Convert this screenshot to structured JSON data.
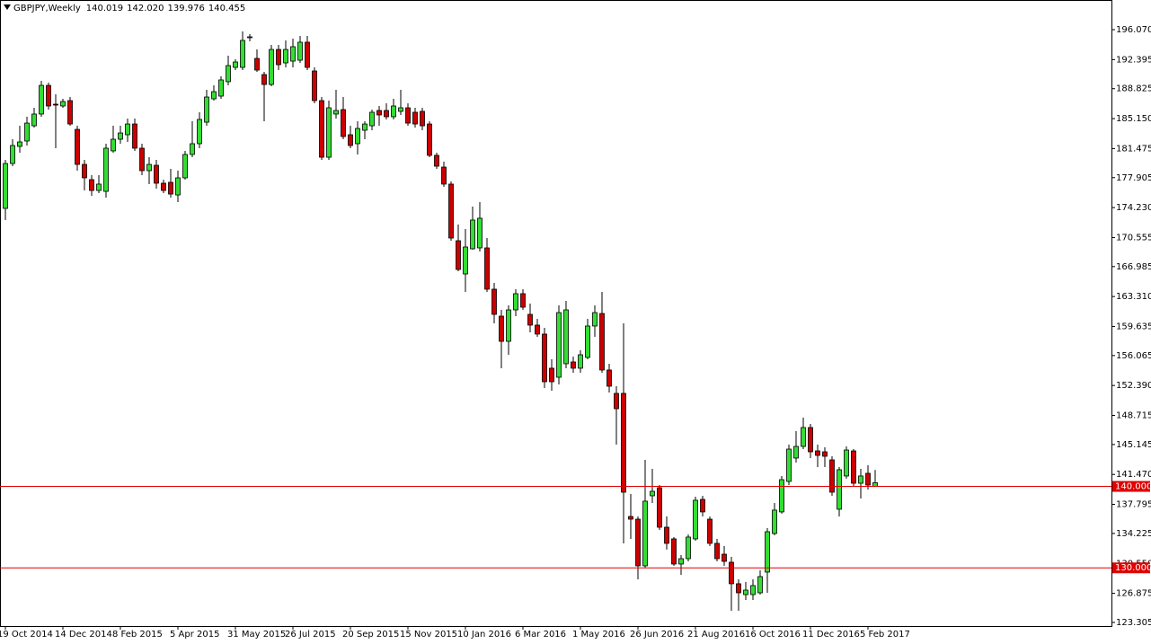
{
  "chart_data": {
    "type": "candlestick",
    "title": "GBPJPY,Weekly",
    "title_values": [
      "140.019",
      "142.020",
      "139.976",
      "140.455"
    ],
    "categories": [
      "19 Oct 2014",
      null,
      null,
      null,
      null,
      null,
      null,
      null,
      "14 Dec 2014",
      null,
      null,
      null,
      null,
      null,
      null,
      null,
      "8 Feb 2015",
      null,
      null,
      null,
      null,
      null,
      null,
      null,
      "5 Apr 2015",
      null,
      null,
      null,
      null,
      null,
      null,
      null,
      "31 May 2015",
      null,
      null,
      null,
      null,
      null,
      null,
      null,
      "26 Jul 2015",
      null,
      null,
      null,
      null,
      null,
      null,
      null,
      "20 Sep 2015",
      null,
      null,
      null,
      null,
      null,
      null,
      null,
      "15 Nov 2015",
      null,
      null,
      null,
      null,
      null,
      null,
      null,
      "10 Jan 2016",
      null,
      null,
      null,
      null,
      null,
      null,
      null,
      "6 Mar 2016",
      null,
      null,
      null,
      null,
      null,
      null,
      null,
      "1 May 2016",
      null,
      null,
      null,
      null,
      null,
      null,
      null,
      "26 Jun 2016",
      null,
      null,
      null,
      null,
      null,
      null,
      null,
      "21 Aug 2016",
      null,
      null,
      null,
      null,
      null,
      null,
      null,
      "16 Oct 2016",
      null,
      null,
      null,
      null,
      null,
      null,
      null,
      "11 Dec 2016",
      null,
      null,
      null,
      null,
      null,
      null,
      null,
      "5 Feb 2017",
      null
    ],
    "open": [
      174.13,
      179.64,
      181.74,
      182.4,
      184.27,
      185.71,
      189.23,
      186.92,
      186.7,
      187.36,
      183.83,
      179.53,
      177.66,
      176.33,
      176.22,
      181.19,
      182.62,
      183.17,
      184.49,
      181.52,
      178.76,
      179.42,
      177.22,
      177.33,
      175.78,
      177.88,
      180.75,
      182.07,
      184.71,
      187.58,
      187.91,
      189.68,
      191.44,
      191.44,
      195.08,
      192.54,
      190.56,
      189.34,
      193.64,
      191.99,
      192.21,
      192.32,
      194.53,
      191.0,
      187.36,
      180.41,
      185.71,
      186.26,
      183.17,
      182.07,
      183.72,
      184.27,
      186.15,
      186.15,
      185.38,
      186.04,
      186.48,
      185.93,
      186.04,
      184.49,
      180.64,
      179.2,
      177.11,
      170.16,
      166.08,
      169.17,
      169.28,
      169.28,
      164.21,
      160.9,
      157.81,
      161.67,
      163.66,
      161.12,
      159.8,
      158.7,
      154.51,
      153.4,
      155.06,
      155.28,
      154.51,
      155.83,
      159.69,
      161.23,
      154.29,
      151.42,
      151.42,
      136.31,
      135.98,
      130.25,
      138.85,
      139.84,
      134.99,
      133.56,
      130.47,
      131.13,
      133.56,
      138.41,
      135.98,
      133.01,
      131.68,
      130.69,
      128.05,
      126.72,
      126.72,
      126.94,
      129.48,
      134.22,
      136.87,
      140.61,
      143.48,
      144.91,
      147.23,
      144.36,
      144.25,
      143.26,
      137.2,
      141.28,
      144.36,
      140.39,
      141.61,
      140.019
    ],
    "high": [
      180.08,
      182.62,
      184.27,
      185.38,
      186.48,
      189.79,
      189.57,
      188.13,
      187.58,
      187.8,
      184.27,
      180.08,
      178.21,
      178.21,
      182.07,
      184.27,
      184.27,
      185.16,
      185.16,
      182.07,
      180.41,
      180.08,
      177.66,
      178.98,
      178.76,
      181.19,
      184.82,
      185.93,
      188.68,
      189.23,
      190.34,
      192.87,
      192.43,
      195.85,
      195.52,
      193.64,
      190.89,
      194.2,
      194.2,
      194.75,
      194.97,
      195.3,
      195.3,
      191.44,
      187.8,
      187.36,
      188.68,
      187.8,
      184.27,
      184.82,
      184.82,
      186.26,
      186.7,
      187.03,
      187.58,
      188.68,
      187.03,
      186.48,
      186.48,
      184.82,
      180.97,
      179.86,
      177.44,
      172.15,
      171.59,
      174.35,
      174.9,
      170.49,
      164.98,
      161.67,
      162.22,
      164.21,
      164.21,
      162.44,
      160.57,
      159.47,
      155.61,
      162.22,
      162.77,
      155.94,
      156.71,
      160.57,
      162.22,
      163.88,
      155.06,
      152.3,
      160.02,
      139.07,
      136.31,
      143.26,
      142.16,
      140.17,
      136.31,
      133.78,
      131.57,
      134.11,
      138.74,
      138.85,
      136.31,
      133.56,
      132.68,
      131.35,
      128.6,
      128.27,
      128.6,
      129.7,
      134.88,
      137.97,
      141.28,
      145.13,
      146.79,
      148.44,
      147.67,
      145.13,
      144.8,
      143.7,
      142.38,
      144.91,
      144.58,
      142.16,
      142.6,
      142.02
    ],
    "low": [
      172.7,
      179.31,
      180.97,
      181.85,
      184.05,
      185.38,
      186.26,
      181.52,
      186.48,
      184.27,
      178.76,
      176.33,
      175.67,
      176.0,
      175.45,
      180.97,
      182.07,
      182.29,
      181.19,
      178.21,
      177.11,
      176.56,
      176.0,
      175.45,
      174.9,
      177.66,
      180.41,
      181.52,
      184.27,
      187.36,
      187.58,
      189.23,
      191.11,
      191.11,
      194.64,
      190.89,
      184.82,
      189.12,
      191.11,
      191.44,
      191.44,
      191.99,
      191.11,
      187.03,
      180.08,
      180.08,
      185.16,
      182.62,
      181.52,
      180.75,
      182.62,
      183.72,
      184.27,
      185.05,
      185.05,
      185.6,
      184.27,
      184.05,
      183.72,
      180.41,
      178.98,
      176.78,
      170.16,
      166.41,
      163.88,
      169.06,
      168.84,
      163.88,
      160.02,
      154.51,
      156.16,
      160.9,
      161.67,
      158.92,
      158.36,
      152.08,
      151.75,
      152.52,
      154.51,
      153.95,
      153.95,
      155.61,
      158.36,
      153.95,
      151.53,
      145.13,
      133.01,
      133.56,
      128.6,
      130.03,
      137.97,
      134.66,
      132.24,
      130.25,
      129.15,
      130.8,
      133.34,
      136.31,
      132.68,
      130.8,
      130.25,
      124.74,
      124.74,
      126.06,
      126.06,
      126.72,
      126.94,
      134.0,
      136.65,
      140.17,
      142.93,
      144.58,
      143.48,
      142.38,
      142.38,
      138.85,
      136.31,
      140.95,
      139.95,
      138.52,
      139.62,
      139.976
    ],
    "close": [
      179.64,
      181.85,
      182.29,
      184.6,
      185.71,
      189.23,
      186.7,
      186.81,
      187.25,
      184.49,
      179.53,
      177.88,
      176.33,
      177.11,
      181.52,
      182.62,
      183.39,
      184.49,
      181.52,
      178.76,
      179.53,
      177.22,
      176.33,
      175.89,
      177.88,
      180.75,
      182.07,
      185.05,
      187.8,
      188.46,
      189.9,
      191.66,
      192.1,
      194.75,
      195.19,
      191.11,
      189.34,
      193.64,
      191.77,
      193.64,
      193.98,
      194.53,
      191.44,
      187.36,
      180.41,
      186.48,
      186.15,
      182.95,
      181.85,
      183.94,
      184.49,
      185.93,
      185.6,
      185.38,
      186.7,
      186.48,
      184.6,
      184.49,
      184.27,
      180.64,
      179.31,
      177.11,
      170.49,
      166.63,
      169.39,
      172.7,
      172.92,
      164.21,
      161.12,
      157.81,
      161.67,
      163.66,
      162.0,
      159.8,
      158.7,
      152.85,
      152.85,
      161.34,
      161.67,
      154.51,
      156.16,
      159.69,
      161.34,
      154.29,
      152.3,
      149.54,
      139.29,
      135.98,
      130.25,
      138.19,
      139.4,
      134.99,
      133.01,
      130.47,
      131.13,
      133.78,
      138.3,
      136.87,
      133.01,
      131.13,
      130.8,
      128.05,
      126.94,
      127.27,
      127.83,
      128.93,
      134.44,
      137.09,
      140.83,
      144.58,
      144.91,
      147.23,
      144.25,
      143.81,
      143.7,
      139.29,
      142.05,
      144.47,
      140.39,
      141.28,
      140.17,
      140.455
    ],
    "up_color": "#33dd33",
    "down_color": "#cc0000",
    "ylim": [
      122.86,
      199.49
    ],
    "yticks": [
      {
        "value": 196.07,
        "label": "196.070"
      },
      192.395,
      188.825,
      {
        "value": 185.15,
        "label": "185.150"
      },
      181.475,
      177.905,
      {
        "value": 174.23,
        "label": "174.230"
      },
      170.555,
      166.985,
      {
        "value": 163.31,
        "label": "163.310"
      },
      159.635,
      156.065,
      {
        "value": 152.39,
        "label": "152.390"
      },
      148.715,
      145.145,
      {
        "value": 141.47,
        "label": "141.470"
      },
      137.795,
      134.225,
      {
        "value": 130.55,
        "label": "130.550"
      },
      126.875,
      123.305
    ],
    "levels": [
      {
        "value": 140,
        "label": "140.000"
      },
      {
        "value": 130,
        "label": "130.000"
      }
    ],
    "level_color": "#e00000"
  }
}
